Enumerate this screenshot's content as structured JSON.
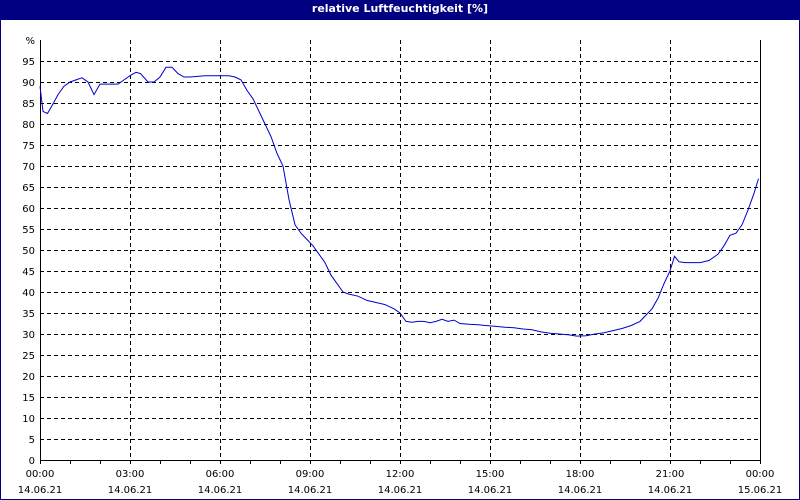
{
  "window": {
    "title": "relative Luftfeuchtigkeit [%]"
  },
  "colors": {
    "title_bg": "#000080",
    "line": "#0000CC",
    "grid": "#000000",
    "border": "#000080"
  },
  "chart_data": {
    "type": "line",
    "title": "relative Luftfeuchtigkeit [%]",
    "xlabel": "",
    "ylabel": "%",
    "ylim": [
      0,
      100
    ],
    "y_ticks": [
      "0",
      "5",
      "10",
      "15",
      "20",
      "25",
      "30",
      "35",
      "40",
      "45",
      "50",
      "55",
      "60",
      "65",
      "70",
      "75",
      "80",
      "85",
      "90",
      "95",
      "%"
    ],
    "x_ticks": [
      {
        "time": "00:00",
        "date": "14.06.21"
      },
      {
        "time": "03:00",
        "date": "14.06.21"
      },
      {
        "time": "06:00",
        "date": "14.06.21"
      },
      {
        "time": "09:00",
        "date": "14.06.21"
      },
      {
        "time": "12:00",
        "date": "14.06.21"
      },
      {
        "time": "15:00",
        "date": "14.06.21"
      },
      {
        "time": "18:00",
        "date": "14.06.21"
      },
      {
        "time": "21:00",
        "date": "14.06.21"
      },
      {
        "time": "00:00",
        "date": "15.06.21"
      }
    ],
    "grid": true,
    "series": [
      {
        "name": "relative Luftfeuchtigkeit",
        "x_hours": [
          0,
          0.1,
          0.25,
          0.45,
          0.6,
          0.8,
          1.0,
          1.2,
          1.4,
          1.6,
          1.8,
          2.0,
          2.2,
          2.4,
          2.6,
          2.8,
          3.0,
          3.2,
          3.35,
          3.6,
          3.8,
          4.0,
          4.2,
          4.4,
          4.6,
          4.8,
          5.0,
          5.5,
          6.0,
          6.3,
          6.5,
          6.7,
          6.9,
          7.1,
          7.3,
          7.5,
          7.7,
          7.9,
          8.1,
          8.3,
          8.5,
          8.7,
          8.9,
          9.1,
          9.3,
          9.5,
          9.7,
          9.9,
          10.1,
          10.3,
          10.6,
          10.9,
          11.2,
          11.5,
          11.8,
          12.0,
          12.2,
          12.4,
          12.6,
          12.8,
          13.0,
          13.2,
          13.4,
          13.6,
          13.8,
          14.0,
          14.3,
          14.6,
          14.9,
          15.2,
          15.5,
          15.8,
          16.1,
          16.4,
          16.7,
          17.0,
          17.3,
          17.6,
          17.9,
          18.2,
          18.5,
          18.8,
          19.1,
          19.4,
          19.7,
          20.0,
          20.2,
          20.4,
          20.6,
          20.8,
          21.0,
          21.15,
          21.3,
          21.5,
          21.7,
          22.0,
          22.3,
          22.6,
          22.8,
          23.0,
          23.2,
          23.4,
          23.6,
          23.8,
          23.95
        ],
        "values": [
          89,
          83,
          82.5,
          85,
          87,
          89,
          90,
          90.5,
          91,
          90,
          87,
          89.5,
          89.5,
          89.5,
          89.5,
          90.5,
          91.5,
          92.3,
          92,
          90,
          90,
          91.2,
          93.5,
          93.5,
          92,
          91.2,
          91.2,
          91.5,
          91.5,
          91.5,
          91.2,
          90.5,
          88,
          86,
          83,
          80,
          77,
          73,
          70,
          62,
          56,
          54,
          52.5,
          51,
          49,
          47,
          44,
          42,
          40,
          39.5,
          39,
          38,
          37.5,
          37,
          36,
          35,
          33,
          32.8,
          33,
          33,
          32.7,
          33,
          33.5,
          33,
          33.3,
          32.5,
          32.3,
          32.2,
          32,
          31.8,
          31.6,
          31.5,
          31.2,
          31,
          30.5,
          30.2,
          30,
          29.8,
          29.5,
          29.6,
          30,
          30.3,
          30.8,
          31.3,
          32,
          33,
          34.5,
          36,
          38.5,
          42,
          45,
          48.5,
          47.2,
          47,
          47,
          47,
          47.5,
          49,
          51,
          53.5,
          54,
          56,
          59.5,
          63.5,
          67
        ]
      }
    ]
  }
}
